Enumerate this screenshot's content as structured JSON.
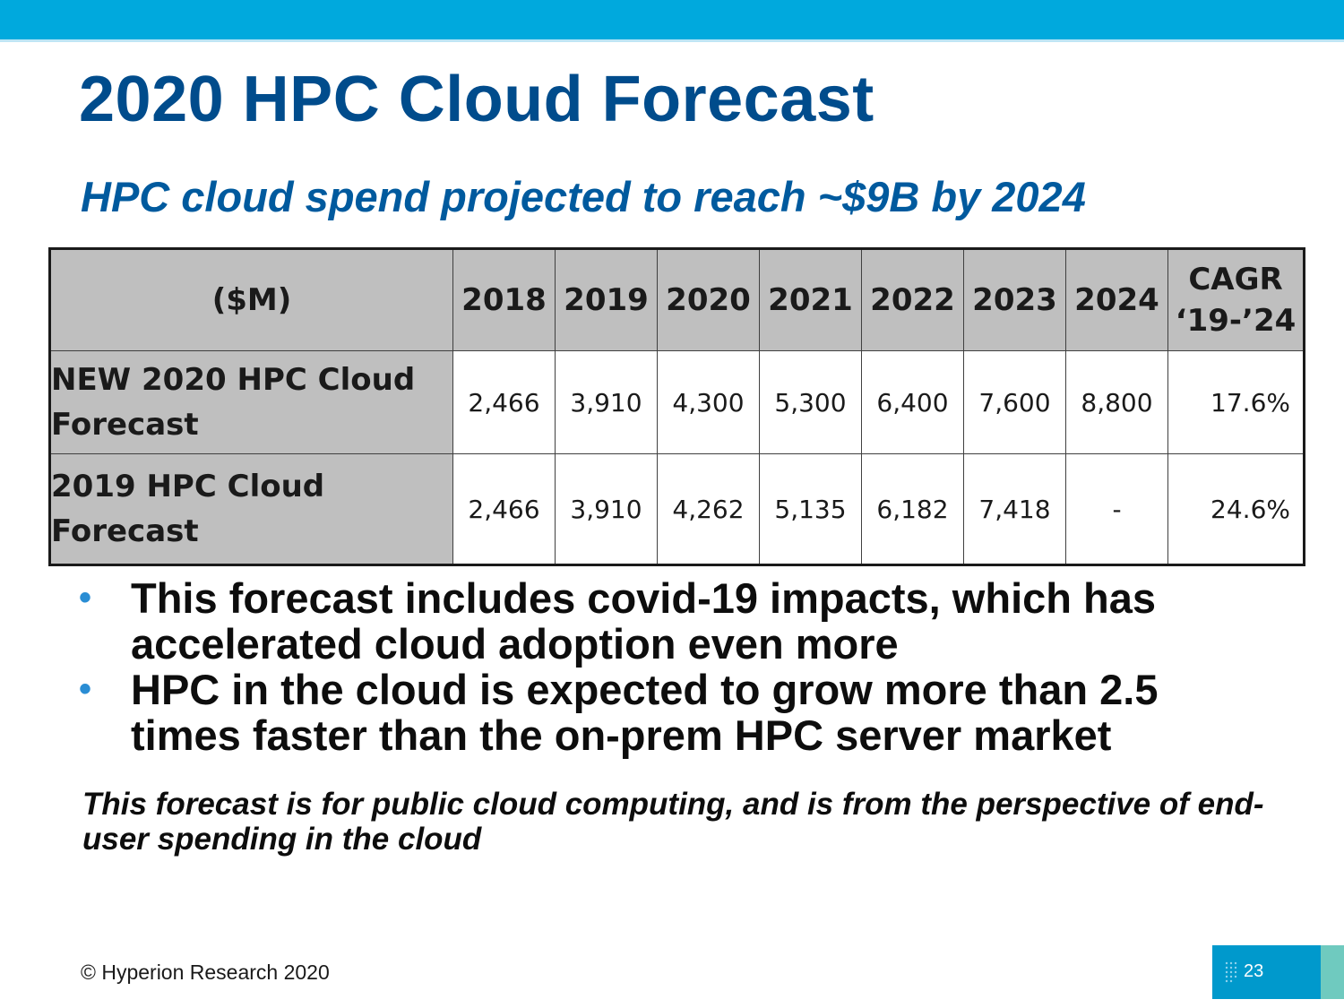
{
  "slide": {
    "title": "2020 HPC Cloud Forecast",
    "subtitle": "HPC cloud spend projected to reach ~$9B by 2024"
  },
  "table": {
    "header": {
      "label": "($M)",
      "years": [
        "2018",
        "2019",
        "2020",
        "2021",
        "2022",
        "2023",
        "2024"
      ],
      "cagr_line1": "CAGR",
      "cagr_line2": "‘19-’24"
    },
    "rows": [
      {
        "label": "NEW 2020 HPC Cloud Forecast",
        "values": [
          "2,466",
          "3,910",
          "4,300",
          "5,300",
          "6,400",
          "7,600",
          "8,800"
        ],
        "cagr": "17.6%"
      },
      {
        "label": "2019 HPC Cloud Forecast",
        "values": [
          "2,466",
          "3,910",
          "4,262",
          "5,135",
          "6,182",
          "7,418",
          "-"
        ],
        "cagr": "24.6%"
      }
    ]
  },
  "bullets": [
    "This forecast includes covid-19 impacts, which has accelerated cloud adoption even more",
    "HPC in the cloud is expected to grow more than 2.5 times faster than the on-prem HPC server market"
  ],
  "bullet_symbol": "•",
  "note": "This forecast is for public cloud computing, and is from the perspective of end-user spending in the cloud",
  "footer": {
    "copyright": "© Hyperion Research 2020",
    "page_number": "23"
  },
  "colors": {
    "top_bar": "#00a9dd",
    "title": "#004c8c",
    "subtitle": "#005a9e",
    "table_header_bg": "#bfbfbf",
    "bullet": "#2a8dd4",
    "page_box": "#0099cc",
    "page_box_accent": "#6fcabf"
  }
}
